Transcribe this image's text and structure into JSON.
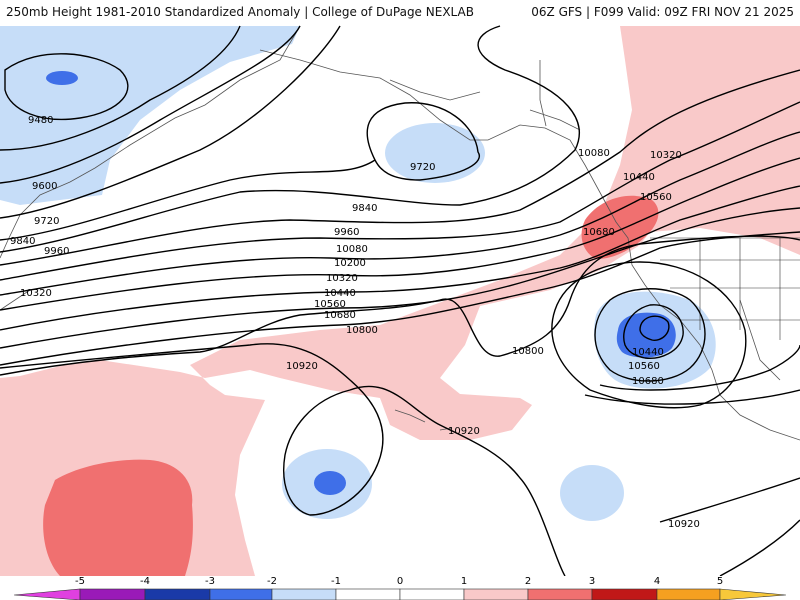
{
  "header": {
    "title": "250mb Height 1981-2010 Standardized Anomaly | College of DuPage NEXLAB",
    "run_info": "06Z GFS | F099 Valid: 09Z FRI NOV 21 2025"
  },
  "contour_labels": [
    {
      "text": "9480"
    },
    {
      "text": "9600"
    },
    {
      "text": "9720"
    },
    {
      "text": "9840"
    },
    {
      "text": "9960"
    },
    {
      "text": "10320"
    },
    {
      "text": "9720"
    },
    {
      "text": "9840"
    },
    {
      "text": "9960"
    },
    {
      "text": "10080"
    },
    {
      "text": "10200"
    },
    {
      "text": "10320"
    },
    {
      "text": "10440"
    },
    {
      "text": "10560"
    },
    {
      "text": "10680"
    },
    {
      "text": "10800"
    },
    {
      "text": "10920"
    },
    {
      "text": "10920"
    },
    {
      "text": "10080"
    },
    {
      "text": "10320"
    },
    {
      "text": "10440"
    },
    {
      "text": "10560"
    },
    {
      "text": "10680"
    },
    {
      "text": "10800"
    },
    {
      "text": "10440"
    },
    {
      "text": "10560"
    },
    {
      "text": "10680"
    },
    {
      "text": "10920"
    }
  ],
  "colorbar": {
    "ticks": [
      "-5",
      "-4",
      "-3",
      "-2",
      "-1",
      "0",
      "1",
      "2",
      "3",
      "4",
      "5"
    ],
    "colors": {
      "below_min": "#e040e0",
      "m5_m4": "#9a1ab8",
      "m4_m3": "#1a3aa8",
      "m3_m2": "#3f6fe8",
      "m2_m1": "#c6ddf8",
      "m1_0": "#ffffff",
      "p0_1": "#ffffff",
      "p1_2": "#f9c9c9",
      "p2_3": "#f07070",
      "p3_4": "#c01818",
      "p4_5": "#f5a020",
      "above_max": "#f7c83a"
    }
  }
}
